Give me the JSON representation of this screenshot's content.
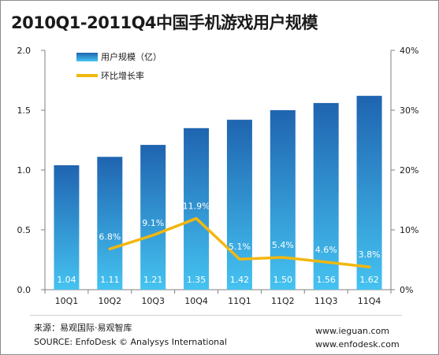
{
  "title": "2010Q1-2011Q4中国手机游戏用户规模",
  "footer": {
    "source_cn": "来源：易观国际·易观智库",
    "source_en": "SOURCE: EnfoDesk © Analysys International",
    "url1": "www.ieguan.com",
    "url2": "www.enfodesk.com"
  },
  "colors": {
    "bar_top": "#1f64b0",
    "bar_bottom": "#45c3f1",
    "line": "#f2b70f",
    "axis": "#7f7f7f"
  },
  "chart_data": {
    "type": "bar",
    "categories": [
      "10Q1",
      "10Q2",
      "10Q3",
      "10Q4",
      "11Q1",
      "11Q2",
      "11Q3",
      "11Q4"
    ],
    "series": [
      {
        "name": "用户规模（亿）",
        "type": "bar",
        "axis": "left",
        "values": [
          1.04,
          1.11,
          1.21,
          1.35,
          1.42,
          1.5,
          1.56,
          1.62
        ],
        "labels": [
          "1.04",
          "1.11",
          "1.21",
          "1.35",
          "1.42",
          "1.50",
          "1.56",
          "1.62"
        ]
      },
      {
        "name": "环比增长率",
        "type": "line",
        "axis": "right",
        "values": [
          null,
          6.8,
          9.1,
          11.9,
          5.1,
          5.4,
          4.6,
          3.8
        ],
        "labels": [
          null,
          "6.8%",
          "9.1%",
          "11.9%",
          "5.1%",
          "5.4%",
          "4.6%",
          "3.8%"
        ]
      }
    ],
    "y_left": {
      "lim": [
        0,
        2.0
      ],
      "ticks": [
        "0.0",
        "0.5",
        "1.0",
        "1.5",
        "2.0"
      ]
    },
    "y_right": {
      "lim": [
        0,
        40
      ],
      "ticks": [
        "0%",
        "10%",
        "20%",
        "30%",
        "40%"
      ]
    },
    "legend_position": "top-left",
    "grid": false
  }
}
